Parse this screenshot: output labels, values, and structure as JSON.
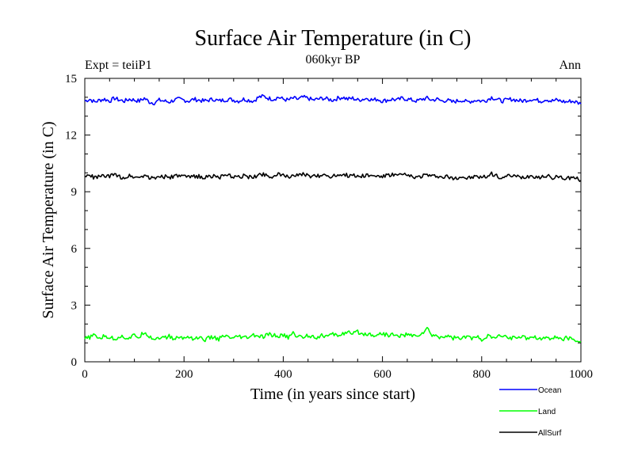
{
  "chart_data": {
    "type": "line",
    "title": "Surface Air Temperature (in C)",
    "subtitle": "060kyr BP",
    "left_label": "Expt = teiiP1",
    "right_label": "Ann",
    "xlabel": "Time (in years since start)",
    "ylabel": "Surface Air Temperature (in C)",
    "xlim": [
      0,
      1000
    ],
    "ylim": [
      0,
      15
    ],
    "xticks": [
      0,
      200,
      400,
      600,
      800,
      1000
    ],
    "xtick_labels": [
      "0",
      "200",
      "400",
      "600",
      "800",
      "1000"
    ],
    "yticks": [
      0,
      3,
      6,
      9,
      12,
      15
    ],
    "ytick_labels": [
      "0",
      "3",
      "6",
      "9",
      "12",
      "15"
    ],
    "grid": false,
    "legend_position": "bottom-right",
    "x_step": 10,
    "series": [
      {
        "name": "Ocean",
        "color": "#0000ff",
        "values": [
          13.8,
          13.9,
          13.75,
          13.85,
          13.9,
          13.8,
          13.95,
          13.85,
          13.8,
          13.9,
          13.85,
          13.8,
          13.95,
          13.75,
          13.7,
          13.85,
          13.8,
          13.75,
          13.85,
          13.9,
          13.85,
          13.8,
          13.9,
          13.85,
          13.8,
          13.85,
          13.9,
          13.8,
          13.85,
          13.9,
          13.85,
          13.8,
          13.9,
          13.85,
          13.8,
          14.0,
          14.05,
          13.95,
          13.9,
          14.0,
          13.9,
          13.85,
          13.95,
          13.9,
          14.0,
          13.95,
          13.85,
          13.9,
          13.95,
          13.9,
          13.85,
          13.95,
          14.0,
          13.9,
          13.95,
          13.85,
          13.9,
          13.95,
          13.85,
          13.9,
          13.8,
          13.85,
          13.9,
          13.85,
          13.95,
          13.9,
          13.85,
          13.8,
          13.9,
          13.95,
          13.85,
          13.9,
          13.8,
          13.85,
          13.75,
          13.8,
          13.85,
          13.75,
          13.8,
          13.85,
          13.8,
          13.85,
          14.0,
          13.9,
          13.8,
          13.85,
          13.9,
          13.85,
          13.8,
          13.85,
          13.9,
          13.85,
          13.8,
          13.9,
          13.8,
          13.85,
          13.8,
          13.75,
          13.8,
          13.75,
          13.65
        ]
      },
      {
        "name": "Land",
        "color": "#00ff00",
        "values": [
          1.2,
          1.3,
          1.4,
          1.25,
          1.35,
          1.3,
          1.2,
          1.35,
          1.3,
          1.25,
          1.4,
          1.3,
          1.6,
          1.35,
          1.2,
          1.3,
          1.25,
          1.35,
          1.2,
          1.3,
          1.25,
          1.35,
          1.2,
          1.3,
          1.15,
          1.25,
          1.3,
          1.2,
          1.35,
          1.3,
          1.2,
          1.35,
          1.25,
          1.3,
          1.4,
          1.35,
          1.3,
          1.45,
          1.4,
          1.35,
          1.4,
          1.3,
          1.5,
          1.35,
          1.3,
          1.4,
          1.35,
          1.3,
          1.4,
          1.35,
          1.45,
          1.4,
          1.5,
          1.55,
          1.45,
          1.6,
          1.45,
          1.5,
          1.4,
          1.45,
          1.5,
          1.4,
          1.45,
          1.35,
          1.4,
          1.45,
          1.35,
          1.4,
          1.5,
          1.75,
          1.4,
          1.35,
          1.3,
          1.4,
          1.25,
          1.3,
          1.2,
          1.35,
          1.25,
          1.3,
          1.2,
          1.35,
          1.3,
          1.25,
          1.4,
          1.3,
          1.25,
          1.35,
          1.3,
          1.25,
          1.35,
          1.3,
          1.2,
          1.3,
          1.25,
          1.3,
          1.2,
          1.25,
          1.2,
          1.15,
          1.05
        ]
      },
      {
        "name": "AllSurf",
        "color": "#000000",
        "values": [
          9.8,
          9.85,
          9.75,
          9.8,
          9.85,
          9.8,
          9.9,
          9.8,
          9.75,
          9.85,
          9.8,
          9.75,
          9.9,
          9.75,
          9.7,
          9.85,
          9.8,
          9.75,
          9.8,
          9.85,
          9.8,
          9.75,
          9.85,
          9.8,
          9.75,
          9.8,
          9.85,
          9.75,
          9.8,
          9.85,
          9.8,
          9.75,
          9.85,
          9.8,
          9.75,
          9.9,
          9.95,
          9.85,
          9.8,
          9.9,
          9.85,
          9.8,
          9.9,
          9.85,
          9.9,
          9.85,
          9.8,
          9.85,
          9.9,
          9.85,
          9.8,
          9.9,
          9.95,
          9.85,
          9.9,
          9.8,
          9.85,
          9.9,
          9.8,
          9.85,
          9.8,
          9.85,
          9.9,
          9.85,
          9.9,
          9.85,
          9.8,
          9.75,
          9.85,
          9.9,
          9.8,
          9.85,
          9.75,
          9.8,
          9.7,
          9.75,
          9.8,
          9.7,
          9.75,
          9.8,
          9.75,
          9.8,
          9.95,
          9.85,
          9.75,
          9.8,
          9.85,
          9.8,
          9.75,
          9.8,
          9.85,
          9.8,
          9.75,
          9.85,
          9.75,
          9.8,
          9.75,
          9.7,
          9.75,
          9.7,
          9.6
        ]
      }
    ]
  }
}
